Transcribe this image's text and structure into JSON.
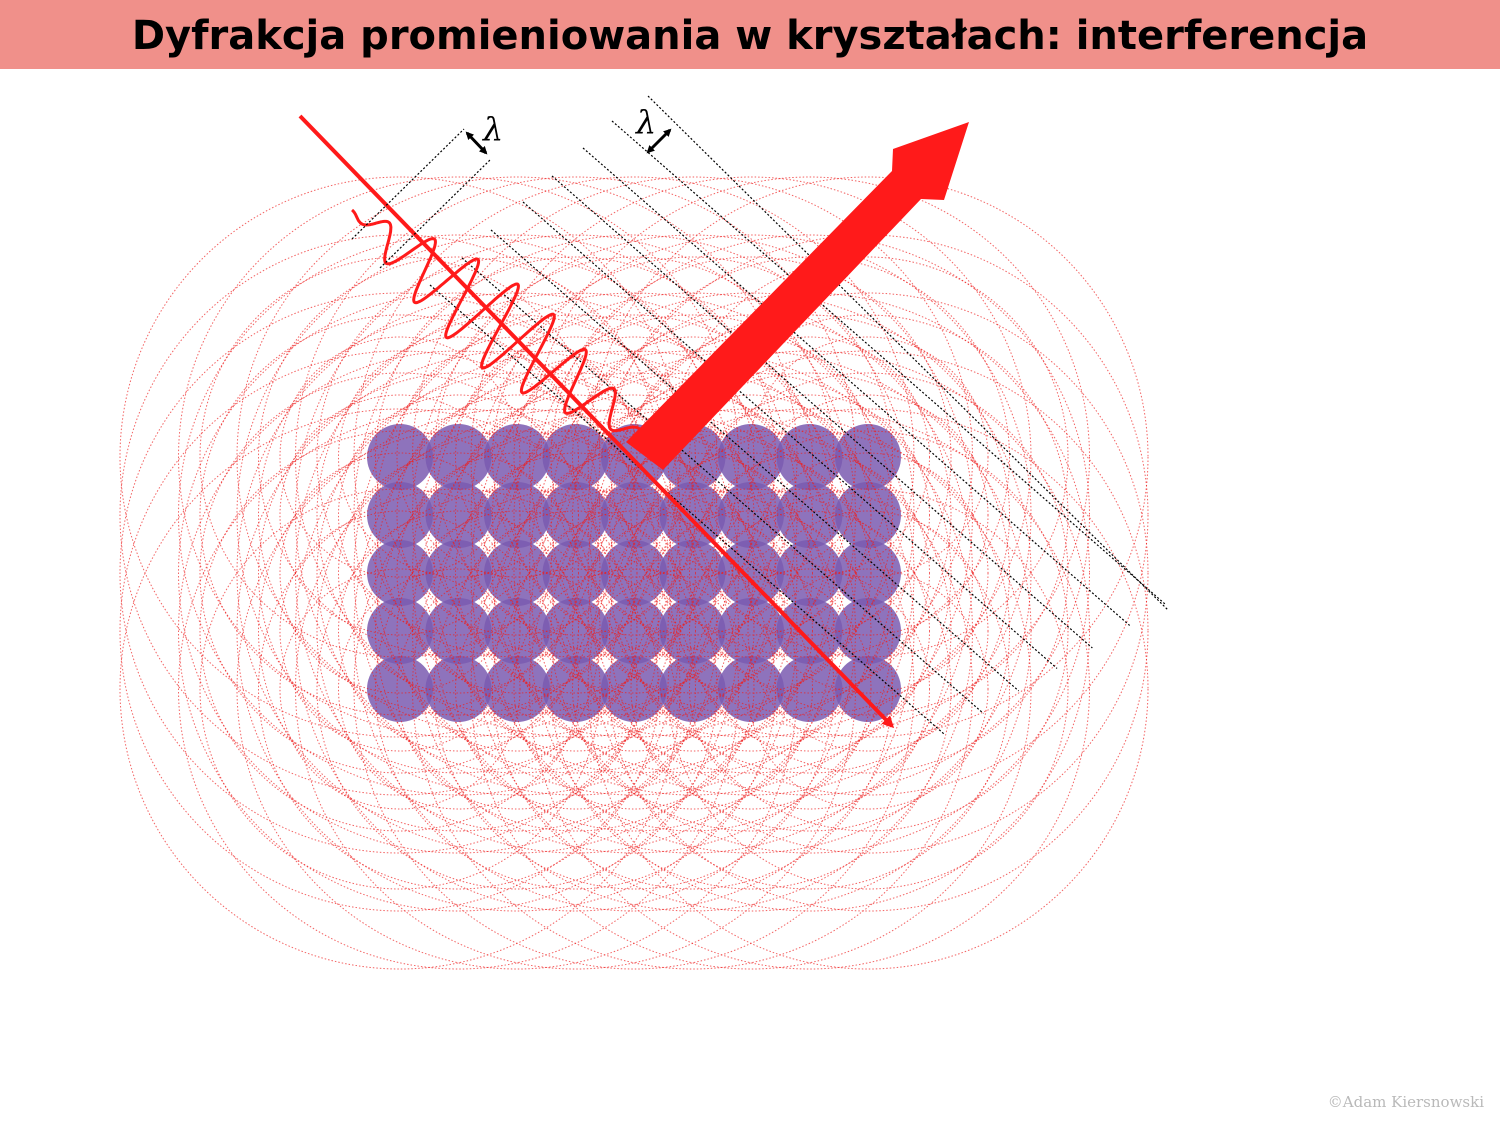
{
  "title": "Dyfrakcja promieniowania w kryształach: interferencja",
  "labels": {
    "wavelength_incident": "λ",
    "wavelength_diffracted": "λ"
  },
  "credit": "©Adam Kiersnowski",
  "colors": {
    "title_bar": "#f0908a",
    "wave": "#ff1a1a",
    "wavefront_circles": "#ee2020",
    "atoms": "#7a5bb0",
    "planes": "#000000"
  },
  "icons": [
    "incident-ray-arrow",
    "diffracted-beam-arrow",
    "double-arrow-icon"
  ],
  "lattice": {
    "rows": 5,
    "columns": 9
  }
}
